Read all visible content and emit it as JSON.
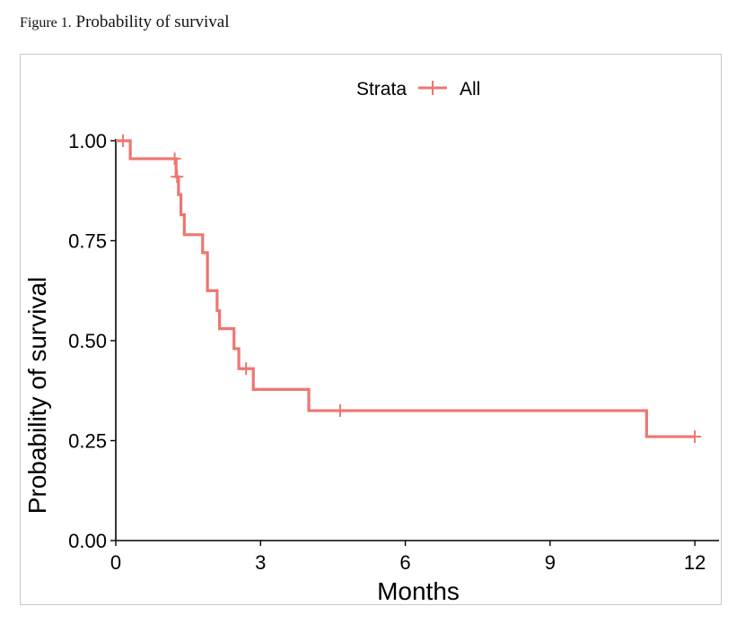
{
  "caption": {
    "label": "Figure 1.",
    "text": "Probability of survival"
  },
  "chart_data": {
    "type": "line",
    "subtype": "kaplan-meier-step",
    "title": "",
    "xlabel": "Months",
    "ylabel": "Probability of survival",
    "xlim": [
      0,
      12.5
    ],
    "ylim": [
      0,
      1
    ],
    "x_ticks": [
      0,
      3,
      6,
      9,
      12
    ],
    "x_tick_labels": [
      "0",
      "3",
      "6",
      "9",
      "12"
    ],
    "y_ticks": [
      0,
      0.25,
      0.5,
      0.75,
      1.0
    ],
    "y_tick_labels": [
      "0.00",
      "0.25",
      "0.50",
      "0.75",
      "1.00"
    ],
    "grid": false,
    "legend": {
      "title": "Strata",
      "position": "top",
      "entries": [
        "All"
      ]
    },
    "series": [
      {
        "name": "All",
        "color": "#ee7670",
        "steps": [
          {
            "x": 0,
            "y": 1.0
          },
          {
            "x": 0.3,
            "y": 0.955
          },
          {
            "x": 1.25,
            "y": 0.91
          },
          {
            "x": 1.3,
            "y": 0.865
          },
          {
            "x": 1.35,
            "y": 0.815
          },
          {
            "x": 1.42,
            "y": 0.765
          },
          {
            "x": 1.8,
            "y": 0.72
          },
          {
            "x": 1.9,
            "y": 0.625
          },
          {
            "x": 2.1,
            "y": 0.575
          },
          {
            "x": 2.15,
            "y": 0.53
          },
          {
            "x": 2.45,
            "y": 0.48
          },
          {
            "x": 2.55,
            "y": 0.43
          },
          {
            "x": 2.85,
            "y": 0.378
          },
          {
            "x": 4.0,
            "y": 0.325
          },
          {
            "x": 11.0,
            "y": 0.26
          },
          {
            "x": 12.0,
            "y": 0.26
          }
        ],
        "censored": [
          {
            "x": 0.15,
            "y": 1.0
          },
          {
            "x": 1.22,
            "y": 0.955
          },
          {
            "x": 1.27,
            "y": 0.91
          },
          {
            "x": 2.7,
            "y": 0.43
          },
          {
            "x": 4.65,
            "y": 0.325
          },
          {
            "x": 12.0,
            "y": 0.26
          }
        ]
      }
    ]
  }
}
